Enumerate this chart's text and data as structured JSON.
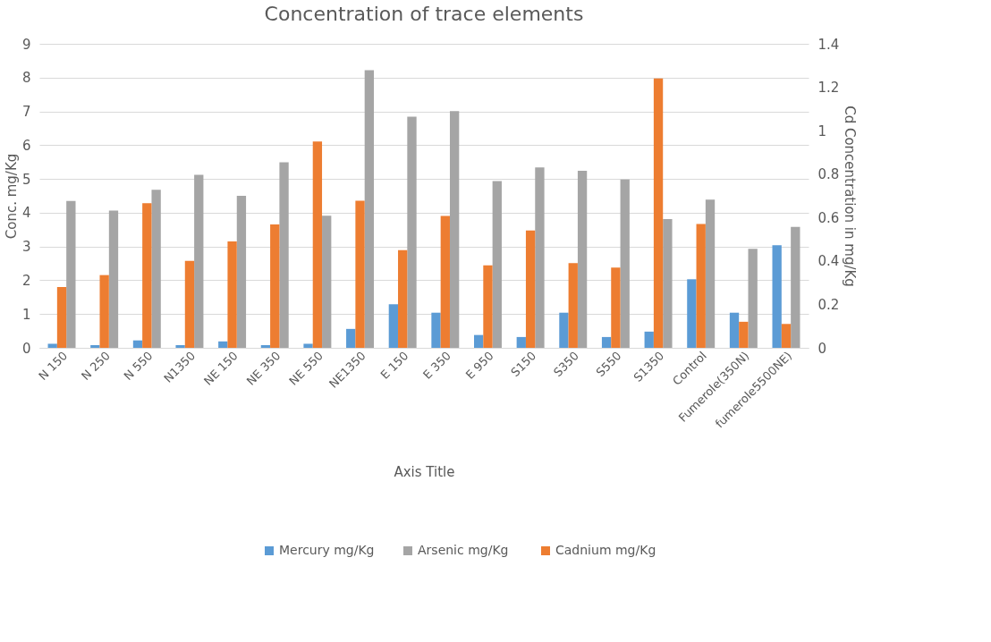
{
  "chart_data": {
    "type": "bar",
    "title": "Concentration of trace elements",
    "xlabel": "Axis Title",
    "ylabel": "Conc. mg/Kg",
    "y2label": "Cd Concentration in mg/Kg",
    "categories": [
      "N 150",
      "N 250",
      "N 550",
      "N1350",
      "NE 150",
      "NE 350",
      "NE 550",
      "NE1350",
      "E 150",
      "E 350",
      "E 950",
      "S150",
      "S350",
      "S550",
      "S1350",
      "Control",
      "Fumerole(350N)",
      "fumerole5500NE)"
    ],
    "series": [
      {
        "name": "Mercury mg/Kg",
        "color": "#5b9bd5",
        "values": [
          0.12,
          0.08,
          0.22,
          0.08,
          0.19,
          0.08,
          0.12,
          0.56,
          1.29,
          1.04,
          0.38,
          0.32,
          1.04,
          0.32,
          0.48,
          2.03,
          1.04,
          3.04
        ]
      },
      {
        "name": "Arsenic  mg/Kg",
        "color": "#a5a5a5",
        "values": [
          4.35,
          4.06,
          4.68,
          5.12,
          4.5,
          5.49,
          3.91,
          8.22,
          6.84,
          7.01,
          4.94,
          5.34,
          5.24,
          4.98,
          3.81,
          4.39,
          2.93,
          3.58
        ]
      },
      {
        "name": "Cadnium mg/Kg",
        "color": "#ed7d31",
        "axis": "y2",
        "values": [
          0.28,
          0.335,
          0.666,
          0.4,
          0.49,
          0.568,
          0.95,
          0.677,
          0.45,
          0.607,
          0.38,
          0.54,
          0.39,
          0.37,
          1.24,
          0.57,
          0.12,
          0.11
        ]
      }
    ],
    "ylim": [
      0,
      9
    ],
    "yticks": [
      0,
      1,
      2,
      3,
      4,
      5,
      6,
      7,
      8,
      9
    ],
    "y2lim": [
      0,
      1.4
    ],
    "y2ticks": [
      0,
      0.2,
      0.4,
      0.6,
      0.8,
      1,
      1.2,
      1.4
    ],
    "grid": "y",
    "legend": "bottom"
  }
}
